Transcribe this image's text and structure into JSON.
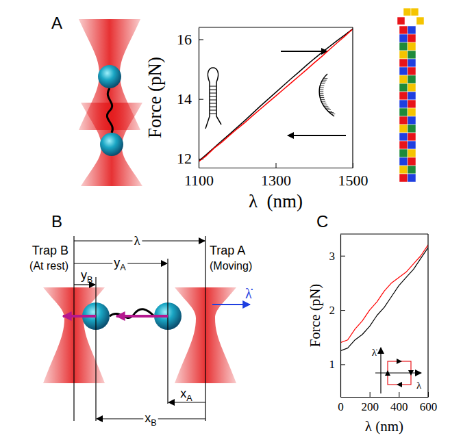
{
  "chart_data": [
    {
      "type": "line",
      "x_label": "λ  (nm)",
      "y_label": "Force (pN)",
      "x": [
        1100,
        1120,
        1140,
        1160,
        1180,
        1200,
        1220,
        1240,
        1260,
        1280,
        1300,
        1320,
        1340,
        1360,
        1380,
        1400,
        1420,
        1440,
        1460,
        1480,
        1500
      ],
      "series": [
        {
          "color": "#000000",
          "values": [
            11.92,
            12.14,
            12.37,
            12.6,
            12.82,
            13.05,
            13.28,
            13.52,
            13.76,
            13.99,
            14.22,
            14.45,
            14.68,
            14.9,
            15.13,
            15.35,
            15.56,
            15.76,
            15.96,
            16.15,
            16.35
          ]
        },
        {
          "color": "#ff0000",
          "values": [
            11.9,
            12.1,
            12.35,
            12.55,
            12.78,
            13.0,
            13.21,
            13.44,
            13.66,
            13.88,
            14.1,
            14.32,
            14.54,
            14.76,
            14.98,
            15.21,
            15.43,
            15.66,
            15.89,
            16.11,
            16.34
          ]
        }
      ],
      "xlim": [
        1100,
        1500
      ],
      "ylim": [
        11.7,
        16.4
      ],
      "xticks": [
        1100,
        1300,
        1500
      ],
      "yticks": [
        12,
        14,
        16
      ]
    },
    {
      "type": "line",
      "x_label": "λ (nm)",
      "y_label": "Force (pN)",
      "x": [
        0,
        50,
        100,
        150,
        200,
        250,
        300,
        350,
        400,
        450,
        500,
        550,
        600
      ],
      "series": [
        {
          "color": "#000000",
          "values": [
            1.25,
            1.3,
            1.45,
            1.55,
            1.7,
            1.9,
            2.05,
            2.25,
            2.45,
            2.6,
            2.75,
            2.95,
            3.15
          ]
        },
        {
          "color": "#ff0000",
          "values": [
            1.4,
            1.45,
            1.65,
            1.8,
            2.0,
            2.15,
            2.35,
            2.5,
            2.6,
            2.7,
            2.85,
            3.0,
            3.2
          ]
        }
      ],
      "xlim": [
        0,
        600
      ],
      "ylim": [
        0.4,
        3.4
      ],
      "xticks": [
        0,
        200,
        400,
        600
      ],
      "yticks": [
        1,
        2,
        3
      ]
    }
  ],
  "diagram": {
    "panel_labels": [
      "A",
      "B",
      "C"
    ],
    "trap_b": [
      "Trap B",
      "(At rest)"
    ],
    "trap_a": [
      "Trap A",
      "(Moving)"
    ],
    "lambda": "λ",
    "lambda_dot": "λ̇",
    "y_a": [
      "y",
      "A"
    ],
    "y_b": [
      "y",
      "B"
    ],
    "x_a": [
      "x",
      "A"
    ],
    "x_b": [
      "x",
      "B"
    ],
    "inset_c": {
      "y_label": "λ̇",
      "x_label": "λ"
    }
  }
}
